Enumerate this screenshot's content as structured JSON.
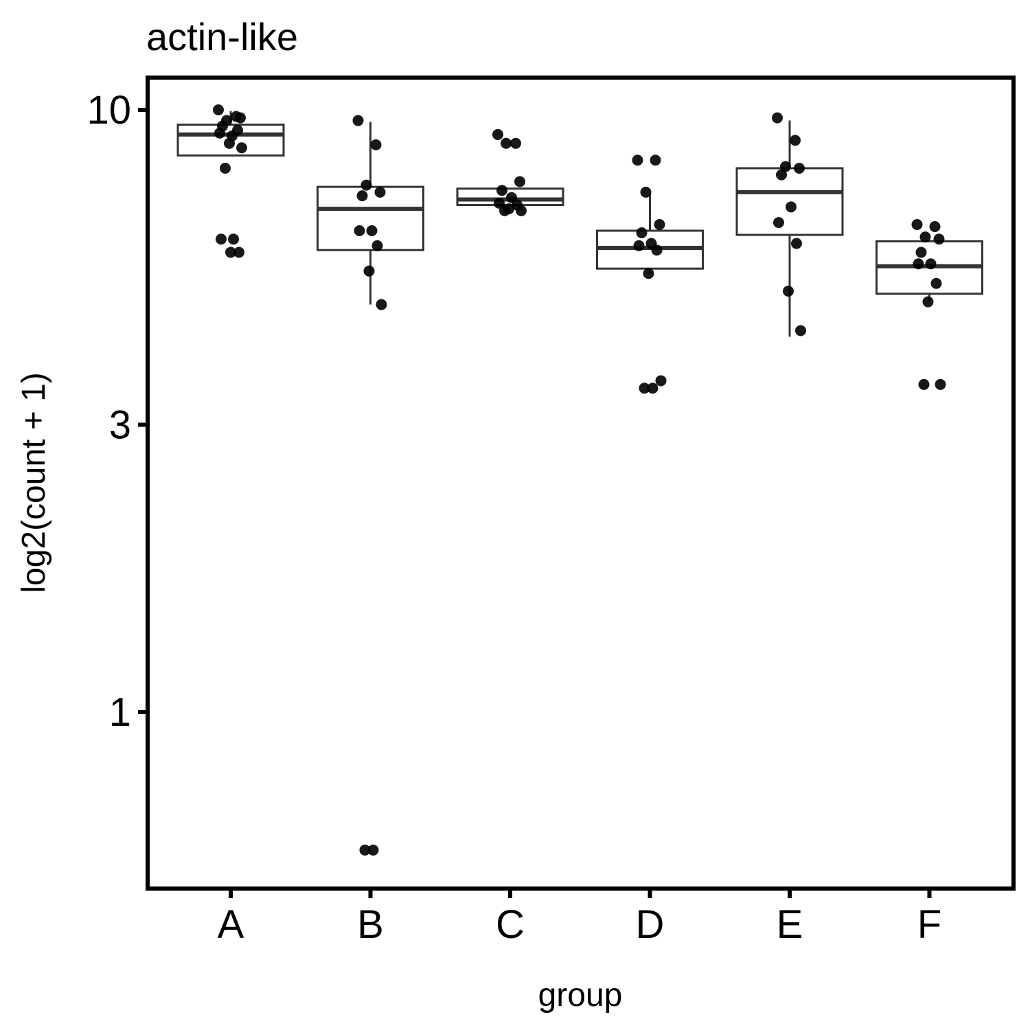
{
  "chart_data": {
    "type": "box",
    "title": "actin-like",
    "xlabel": "group",
    "ylabel": "log2(count + 1)",
    "y_scale": "log",
    "ylim": [
      0.55,
      11.5
    ],
    "yticks": [
      1,
      3,
      10
    ],
    "ytick_labels": [
      "1",
      "3",
      "10"
    ],
    "grid": false,
    "legend": "none",
    "categories": [
      "A",
      "B",
      "C",
      "D",
      "E",
      "F"
    ],
    "boxes": [
      {
        "group": "A",
        "whisker_low": 8.4,
        "q1": 8.4,
        "median": 9.1,
        "q3": 9.45,
        "whisker_high": 9.95
      },
      {
        "group": "B",
        "whisker_low": 4.75,
        "q1": 5.85,
        "median": 6.85,
        "q3": 7.45,
        "whisker_high": 9.55
      },
      {
        "group": "C",
        "whisker_low": 6.95,
        "q1": 6.95,
        "median": 7.1,
        "q3": 7.4,
        "whisker_high": 7.4
      },
      {
        "group": "D",
        "whisker_low": 5.35,
        "q1": 5.45,
        "median": 5.9,
        "q3": 6.3,
        "whisker_high": 7.25
      },
      {
        "group": "E",
        "whisker_low": 4.2,
        "q1": 6.2,
        "median": 7.3,
        "q3": 8.0,
        "whisker_high": 9.6
      },
      {
        "group": "F",
        "whisker_low": 4.8,
        "q1": 4.95,
        "median": 5.5,
        "q3": 6.05,
        "whisker_high": 6.05
      }
    ],
    "points": [
      {
        "group": "A",
        "values": [
          10.0,
          9.75,
          9.6,
          9.7,
          9.4,
          9.05,
          9.15,
          9.25,
          8.8,
          8.65,
          8.0,
          6.1,
          6.1,
          5.8,
          5.8
        ]
      },
      {
        "group": "B",
        "values": [
          9.6,
          8.75,
          7.5,
          7.3,
          7.2,
          6.3,
          6.3,
          5.95,
          5.4,
          4.75,
          0.59,
          0.59
        ]
      },
      {
        "group": "C",
        "values": [
          9.1,
          8.8,
          8.8,
          7.6,
          7.35,
          7.15,
          7.0,
          6.95,
          6.85,
          6.8,
          6.8
        ]
      },
      {
        "group": "D",
        "values": [
          8.25,
          8.25,
          7.3,
          6.45,
          6.25,
          6.0,
          5.95,
          5.85,
          5.35,
          3.55,
          3.45,
          3.45
        ]
      },
      {
        "group": "E",
        "values": [
          9.7,
          8.9,
          8.05,
          8.0,
          7.8,
          6.9,
          6.5,
          6.0,
          5.0,
          4.3
        ]
      },
      {
        "group": "F",
        "values": [
          6.45,
          6.4,
          6.15,
          6.1,
          5.8,
          5.55,
          5.55,
          5.15,
          4.8,
          3.5,
          3.5
        ]
      }
    ]
  }
}
